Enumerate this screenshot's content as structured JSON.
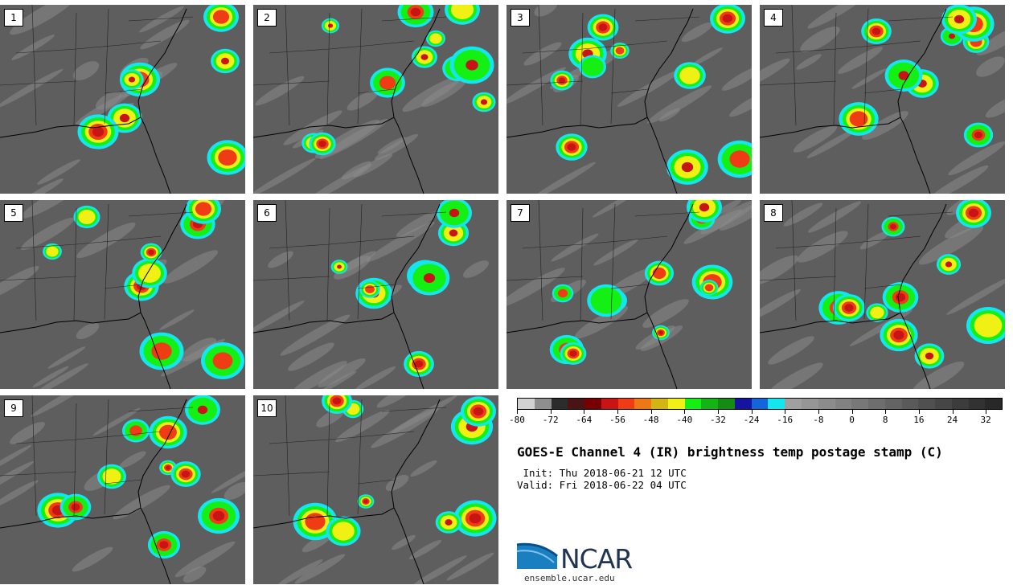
{
  "panels": [
    {
      "label": "1"
    },
    {
      "label": "2"
    },
    {
      "label": "3"
    },
    {
      "label": "4"
    },
    {
      "label": "5"
    },
    {
      "label": "6"
    },
    {
      "label": "7"
    },
    {
      "label": "8"
    },
    {
      "label": "9"
    },
    {
      "label": "10"
    }
  ],
  "colorbar": {
    "colors": [
      "#d2d2d2",
      "#8e8e8e",
      "#2c2c2c",
      "#4a1414",
      "#780000",
      "#c81414",
      "#f03c14",
      "#f07814",
      "#d2b414",
      "#f0f014",
      "#14f014",
      "#14b414",
      "#148c14",
      "#1414a0",
      "#1464dc",
      "#14e6f0",
      "#a0a0a0",
      "#969696",
      "#8c8c8c",
      "#828282",
      "#787878",
      "#6e6e6e",
      "#646464",
      "#5a5a5a",
      "#505050",
      "#464646",
      "#3c3c3c",
      "#323232",
      "#282828"
    ],
    "tick_labels": [
      "-80",
      "-72",
      "-64",
      "-56",
      "-48",
      "-40",
      "-32",
      "-24",
      "-16",
      "-8",
      "0",
      "8",
      "16",
      "24",
      "32"
    ]
  },
  "title": "GOES-E Channel 4 (IR) brightness temp postage stamp (C)",
  "init_line": " Init: Thu 2018-06-21 12 UTC",
  "valid_line": "Valid: Fri 2018-06-22 04 UTC",
  "logo": {
    "text": "NCAR",
    "website": "ensemble.ucar.edu"
  }
}
